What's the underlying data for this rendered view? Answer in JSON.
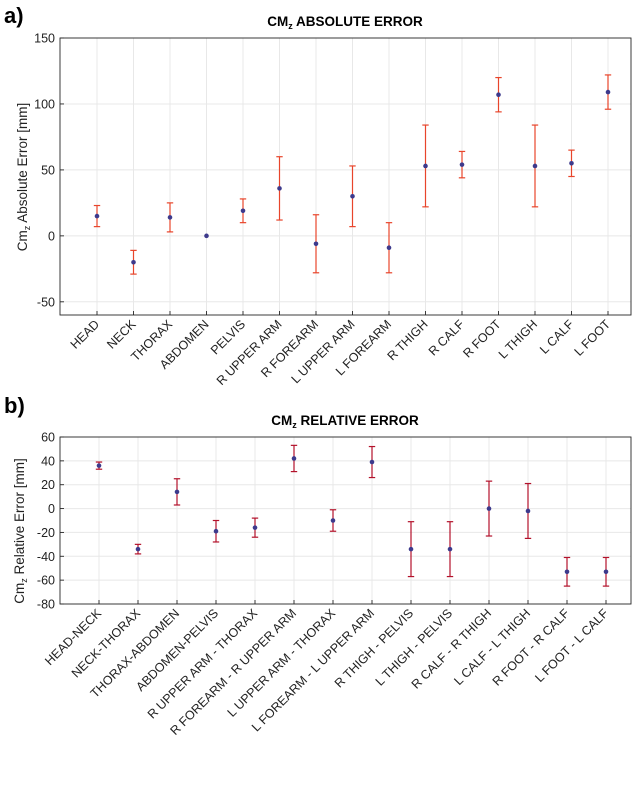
{
  "chart_data": [
    {
      "type": "scatter",
      "panel_label": "a)",
      "title_main": "CM",
      "title_sub": "z",
      "title_rest": " ABSOLUTE ERROR",
      "ylabel_main": "Cm",
      "ylabel_sub": "z",
      "ylabel_rest": " Absolute Error [mm]",
      "ylim": [
        -60,
        150
      ],
      "yticks": [
        -50,
        0,
        50,
        100,
        150
      ],
      "grid": true,
      "colors": {
        "errorbar": "#e8452b",
        "marker": "#3d3a8c"
      },
      "categories": [
        "HEAD",
        "NECK",
        "THORAX",
        "ABDOMEN",
        "PELVIS",
        "R UPPER ARM",
        "R FOREARM",
        "L UPPER ARM",
        "L FOREARM",
        "R THIGH",
        "R CALF",
        "R FOOT",
        "L THIGH",
        "L CALF",
        "L FOOT"
      ],
      "values": [
        15,
        -20,
        14,
        0,
        19,
        36,
        -6,
        30,
        -9,
        53,
        54,
        107,
        53,
        55,
        109
      ],
      "errors": [
        8,
        9,
        11,
        0,
        9,
        24,
        22,
        23,
        19,
        31,
        10,
        13,
        31,
        10,
        13
      ]
    },
    {
      "type": "scatter",
      "panel_label": "b)",
      "title_main": "CM",
      "title_sub": "z",
      "title_rest": " RELATIVE ERROR",
      "ylabel_main": "Cm",
      "ylabel_sub": "z",
      "ylabel_rest": " Relative Error [mm]",
      "ylim": [
        -80,
        60
      ],
      "yticks": [
        -80,
        -60,
        -40,
        -20,
        0,
        20,
        40,
        60
      ],
      "grid": true,
      "colors": {
        "errorbar": "#b3122b",
        "marker": "#3d3a8c"
      },
      "categories": [
        "HEAD-NECK",
        "NECK-THORAX",
        "THORAX-ABDOMEN",
        "ABDOMEN-PELVIS",
        "R UPPER ARM - THORAX",
        "R FOREARM - R UPPER ARM",
        "L UPPER ARM - THORAX",
        "L FOREARM - L UPPER ARM",
        "R THIGH - PELVIS",
        "L THIGH - PELVIS",
        "R CALF - R THIGH",
        "L CALF - L THIGH",
        "R FOOT - R CALF",
        "L FOOT - L CALF"
      ],
      "values": [
        36,
        -34,
        14,
        -19,
        -16,
        42,
        -10,
        39,
        -34,
        -34,
        0,
        -2,
        -53,
        -53
      ],
      "errors": [
        3,
        4,
        11,
        9,
        8,
        11,
        9,
        13,
        23,
        23,
        23,
        23,
        12,
        12
      ]
    }
  ]
}
